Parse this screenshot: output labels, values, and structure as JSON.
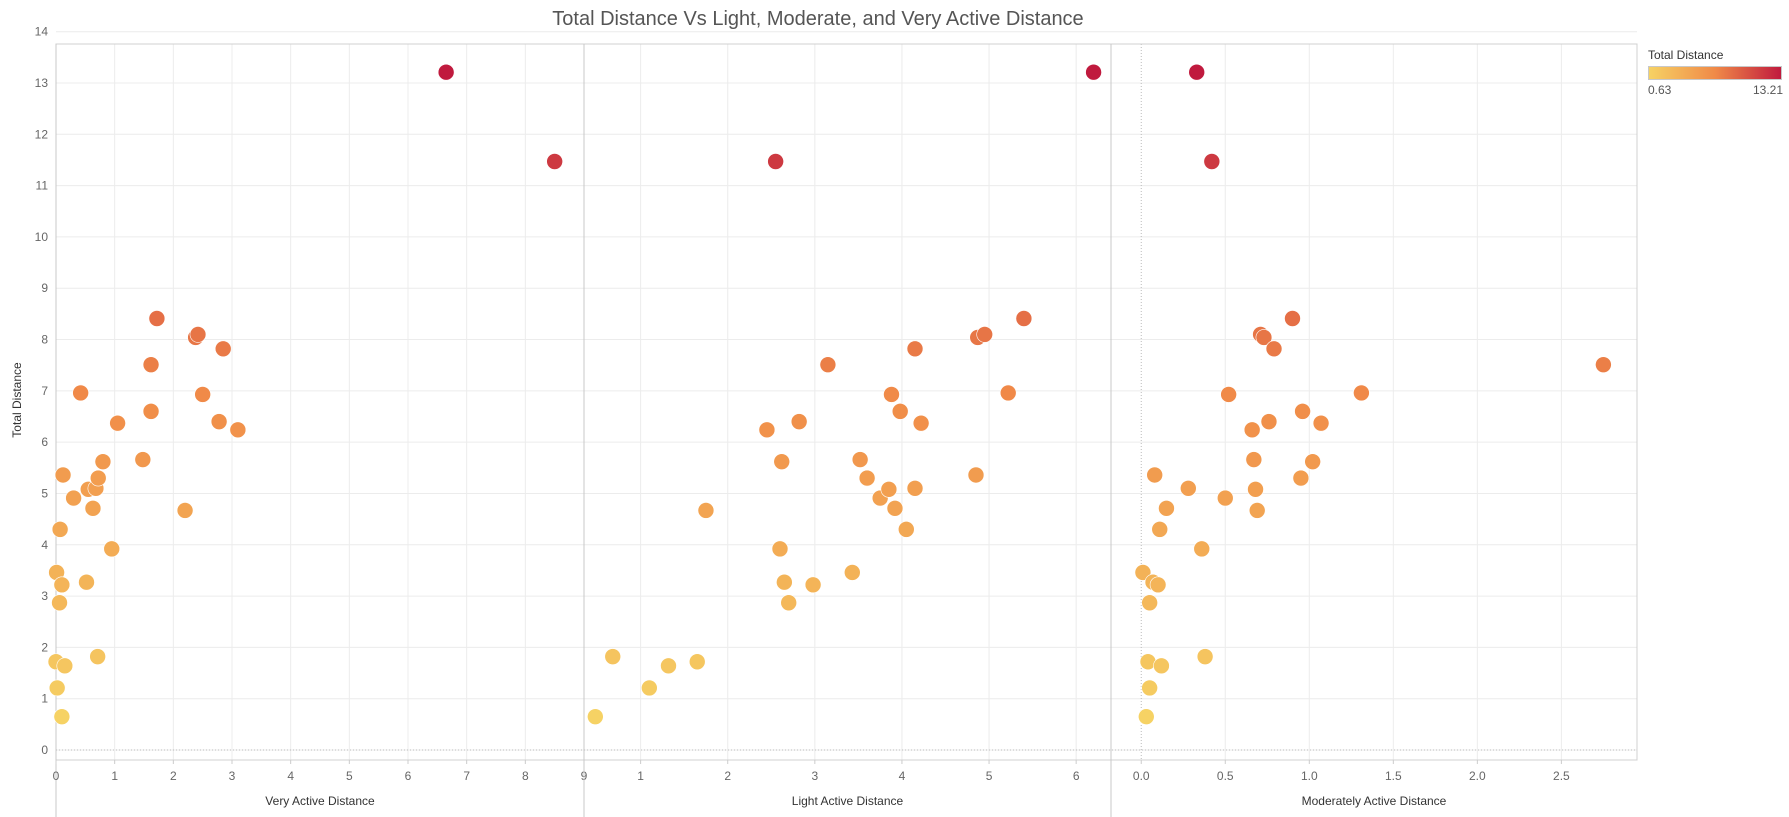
{
  "title": "Total Distance Vs Light, Moderate, and Very Active Distance",
  "legend": {
    "title": "Total Distance",
    "min_label": "0.63",
    "max_label": "13.21",
    "color_low": "#f6d264",
    "color_mid": "#f08a48",
    "color_high": "#c01a3e"
  },
  "chart_data": {
    "type": "scatter",
    "title": "Total Distance Vs Light, Moderate, and Very Active Distance",
    "ylabel": "Total Distance",
    "ylim": [
      0,
      14
    ],
    "y_ticks": [
      0,
      1,
      2,
      3,
      4,
      5,
      6,
      7,
      8,
      9,
      10,
      11,
      12,
      13,
      14
    ],
    "color_scale": {
      "field": "Total Distance",
      "min": 0.63,
      "max": 13.21
    },
    "grid": true,
    "legend_position": "top-right",
    "panels": [
      {
        "xlabel": "Very Active Distance",
        "xlim": [
          0,
          9
        ],
        "x_ticks": [
          "0",
          "1",
          "2",
          "3",
          "4",
          "5",
          "6",
          "7",
          "8",
          "9"
        ],
        "points": [
          [
            0.0,
            1.72
          ],
          [
            0.01,
            3.46
          ],
          [
            0.02,
            1.21
          ],
          [
            0.06,
            2.87
          ],
          [
            0.07,
            4.3
          ],
          [
            0.1,
            3.22
          ],
          [
            0.12,
            5.36
          ],
          [
            0.15,
            1.64
          ],
          [
            0.1,
            0.65
          ],
          [
            0.3,
            4.91
          ],
          [
            0.42,
            6.96
          ],
          [
            0.52,
            3.27
          ],
          [
            0.55,
            5.08
          ],
          [
            0.63,
            4.71
          ],
          [
            0.68,
            5.1
          ],
          [
            0.72,
            5.3
          ],
          [
            0.8,
            5.62
          ],
          [
            0.71,
            1.82
          ],
          [
            0.95,
            3.92
          ],
          [
            1.05,
            6.37
          ],
          [
            1.48,
            5.66
          ],
          [
            1.62,
            7.51
          ],
          [
            1.62,
            6.6
          ],
          [
            1.72,
            8.41
          ],
          [
            2.2,
            4.67
          ],
          [
            2.38,
            8.04
          ],
          [
            2.42,
            8.1
          ],
          [
            2.5,
            6.93
          ],
          [
            2.78,
            6.4
          ],
          [
            2.85,
            7.82
          ],
          [
            3.1,
            6.24
          ],
          [
            6.65,
            13.21
          ],
          [
            8.5,
            11.47
          ]
        ]
      },
      {
        "xlabel": "Light Active Distance",
        "xlim": [
          0.35,
          6.4
        ],
        "x_ticks": [
          "1",
          "2",
          "3",
          "4",
          "5",
          "6"
        ],
        "points": [
          [
            0.48,
            0.65
          ],
          [
            0.68,
            1.82
          ],
          [
            1.1,
            1.21
          ],
          [
            1.32,
            1.64
          ],
          [
            1.65,
            1.72
          ],
          [
            1.75,
            4.67
          ],
          [
            2.45,
            6.24
          ],
          [
            2.55,
            11.47
          ],
          [
            2.6,
            3.92
          ],
          [
            2.62,
            5.62
          ],
          [
            2.65,
            3.27
          ],
          [
            2.7,
            2.87
          ],
          [
            2.82,
            6.4
          ],
          [
            2.98,
            3.22
          ],
          [
            3.15,
            7.51
          ],
          [
            3.43,
            3.46
          ],
          [
            3.52,
            5.66
          ],
          [
            3.6,
            5.3
          ],
          [
            3.75,
            4.91
          ],
          [
            3.85,
            5.08
          ],
          [
            3.88,
            6.93
          ],
          [
            3.92,
            4.71
          ],
          [
            3.98,
            6.6
          ],
          [
            4.05,
            4.3
          ],
          [
            4.15,
            5.1
          ],
          [
            4.15,
            7.82
          ],
          [
            4.22,
            6.37
          ],
          [
            4.85,
            5.36
          ],
          [
            4.87,
            8.04
          ],
          [
            4.95,
            8.1
          ],
          [
            5.22,
            6.96
          ],
          [
            5.4,
            8.41
          ],
          [
            6.2,
            13.21
          ]
        ]
      },
      {
        "xlabel": "Moderately Active Distance",
        "xlim": [
          -0.18,
          2.95
        ],
        "x_ticks": [
          "0.0",
          "0.5",
          "1.0",
          "1.5",
          "2.0",
          "2.5"
        ],
        "points": [
          [
            0.01,
            3.46
          ],
          [
            0.03,
            0.65
          ],
          [
            0.04,
            1.72
          ],
          [
            0.05,
            2.87
          ],
          [
            0.05,
            1.21
          ],
          [
            0.07,
            3.27
          ],
          [
            0.08,
            5.36
          ],
          [
            0.1,
            3.22
          ],
          [
            0.11,
            4.3
          ],
          [
            0.12,
            1.64
          ],
          [
            0.15,
            4.71
          ],
          [
            0.28,
            5.1
          ],
          [
            0.33,
            13.21
          ],
          [
            0.36,
            3.92
          ],
          [
            0.38,
            1.82
          ],
          [
            0.42,
            11.47
          ],
          [
            0.5,
            4.91
          ],
          [
            0.52,
            6.93
          ],
          [
            0.66,
            6.24
          ],
          [
            0.67,
            5.66
          ],
          [
            0.68,
            5.08
          ],
          [
            0.69,
            4.67
          ],
          [
            0.71,
            8.1
          ],
          [
            0.73,
            8.04
          ],
          [
            0.76,
            6.4
          ],
          [
            0.79,
            7.82
          ],
          [
            0.9,
            8.41
          ],
          [
            0.95,
            5.3
          ],
          [
            0.96,
            6.6
          ],
          [
            1.02,
            5.62
          ],
          [
            1.07,
            6.37
          ],
          [
            1.31,
            6.96
          ],
          [
            2.75,
            7.51
          ]
        ]
      }
    ]
  }
}
